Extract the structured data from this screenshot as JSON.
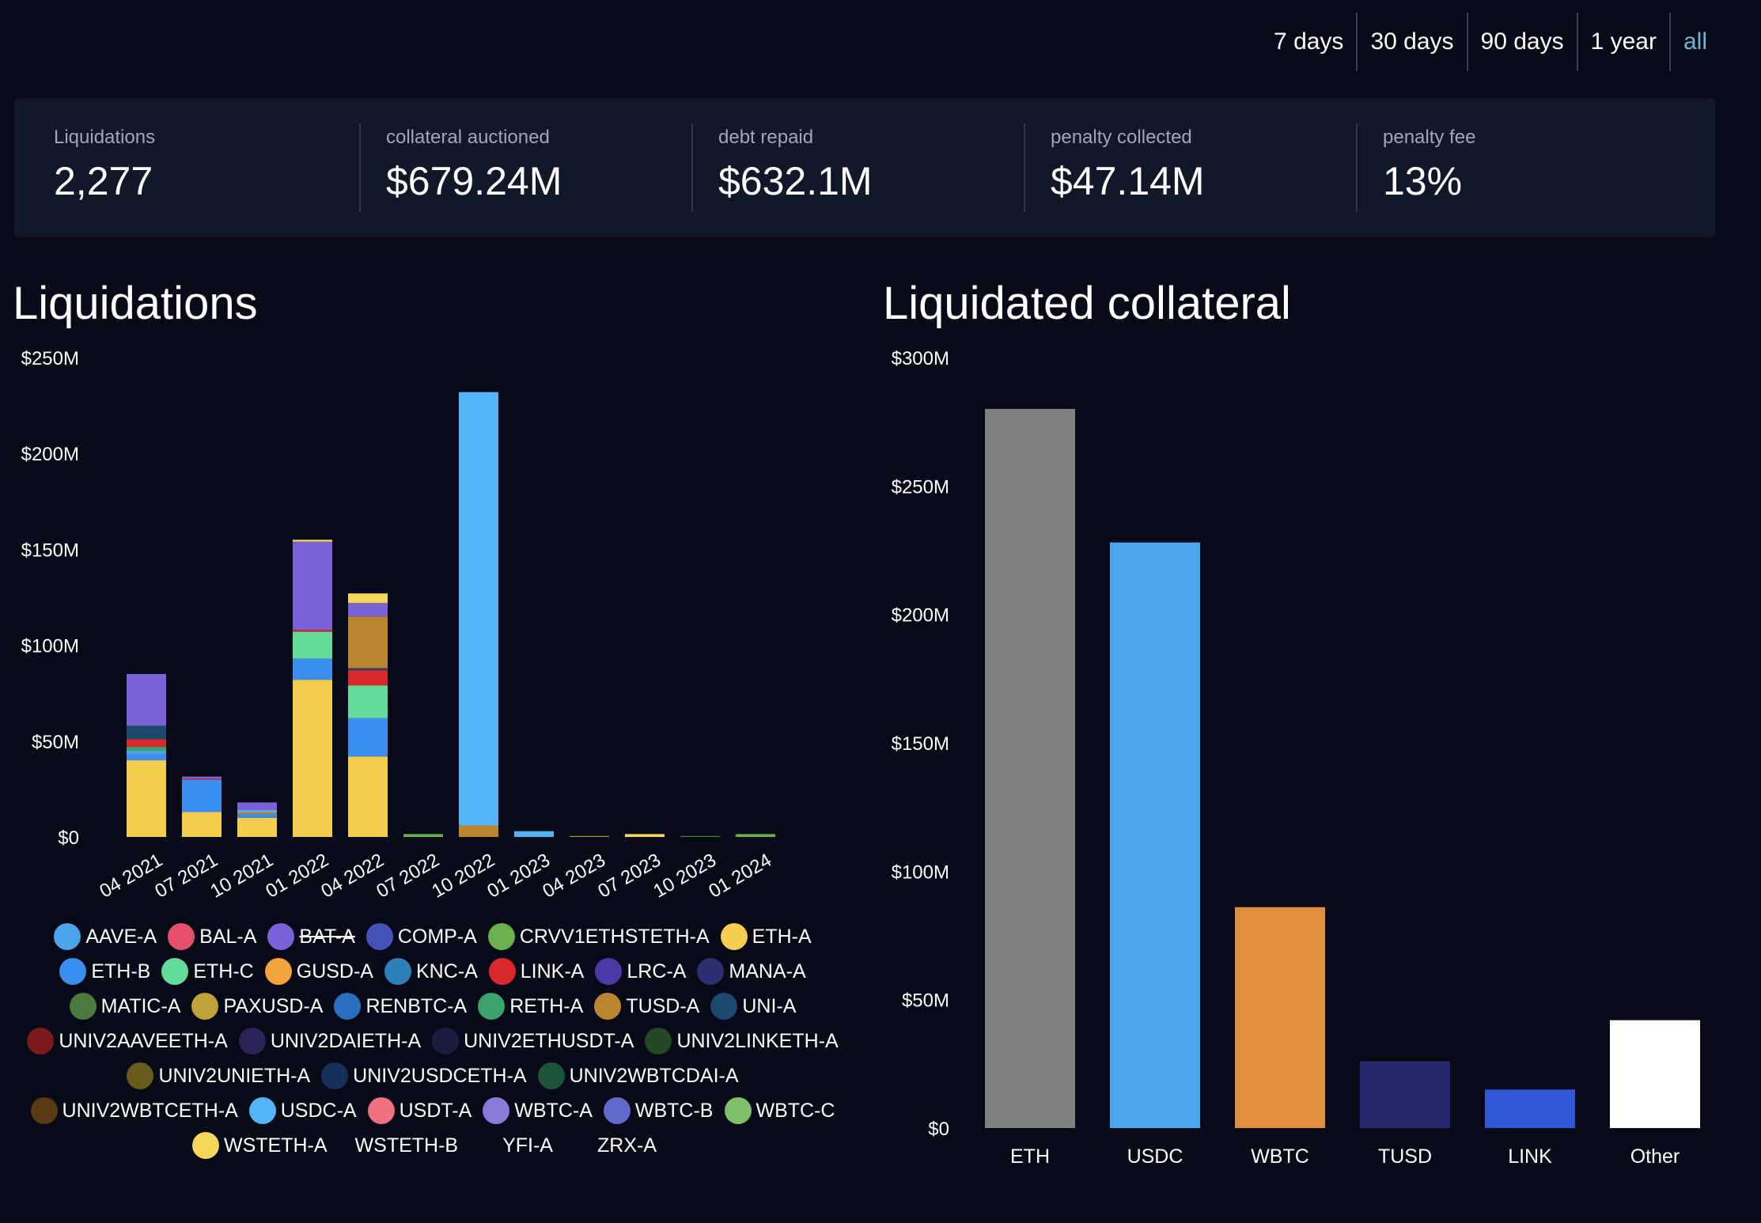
{
  "range_tabs": [
    {
      "label": "7 days",
      "active": false
    },
    {
      "label": "30 days",
      "active": false
    },
    {
      "label": "90 days",
      "active": false
    },
    {
      "label": "1 year",
      "active": false
    },
    {
      "label": "all",
      "active": true
    }
  ],
  "stats": [
    {
      "label": "Liquidations",
      "value": "2,277"
    },
    {
      "label": "collateral auctioned",
      "value": "$679.24M"
    },
    {
      "label": "debt repaid",
      "value": "$632.1M"
    },
    {
      "label": "penalty collected",
      "value": "$47.14M"
    },
    {
      "label": "penalty fee",
      "value": "13%"
    }
  ],
  "colors": {
    "AAVE-A": "#4ba3e8",
    "BAL-A": "#e8506a",
    "BAT-A": "#7b62d6",
    "COMP-A": "#4452b8",
    "CRVV1ETHSTETH-A": "#6ab04c",
    "ETH-A": "#f2cd4e",
    "ETH-B": "#3b8ef0",
    "ETH-C": "#63dc9a",
    "GUSD-A": "#f1a43c",
    "KNC-A": "#2f7fb8",
    "LINK-A": "#d8292f",
    "LRC-A": "#4a3aa8",
    "MANA-A": "#2a2f6e",
    "MATIC-A": "#4a7a3c",
    "PAXUSD-A": "#c0a23a",
    "RENBTC-A": "#2a6ec0",
    "RETH-A": "#3aa26a",
    "TUSD-A": "#b8862e",
    "UNI-A": "#1c4a6e",
    "UNIV2AAVEETH-A": "#7a1a1a",
    "UNIV2DAIETH-A": "#2a2458",
    "UNIV2ETHUSDT-A": "#1a1e3e",
    "UNIV2LINKETH-A": "#244a24",
    "UNIV2UNIETH-A": "#6a5a1a",
    "UNIV2USDCETH-A": "#16325a",
    "UNIV2WBTCDAI-A": "#1e5436",
    "UNIV2WBTCETH-A": "#5a3a14",
    "USDC-A": "#52b4f5",
    "USDT-A": "#f07080",
    "WBTC-A": "#8b7ad8",
    "WBTC-B": "#6068c8",
    "WBTC-C": "#7ec06a",
    "WSTETH-A": "#f5d658"
  },
  "chart_data": [
    {
      "type": "bar",
      "stacked": true,
      "title": "Liquidations",
      "categories": [
        "04 2021",
        "07 2021",
        "10 2021",
        "01 2022",
        "04 2022",
        "07 2022",
        "10 2022",
        "01 2023",
        "04 2023",
        "07 2023",
        "10 2023",
        "01 2024"
      ],
      "y_tick_labels": [
        "$0",
        "$50M",
        "$100M",
        "$150M",
        "$200M",
        "$250M"
      ],
      "ylim": [
        0,
        250
      ],
      "unit": "M USD",
      "series": [
        {
          "name": "ETH-A",
          "values": [
            40,
            13,
            10,
            82,
            42,
            0,
            0,
            0,
            0,
            0,
            0,
            0
          ]
        },
        {
          "name": "ETH-B",
          "values": [
            3,
            17,
            2,
            11,
            20,
            0,
            0,
            0,
            0,
            0,
            0,
            0
          ]
        },
        {
          "name": "ETH-C",
          "values": [
            0,
            0,
            0,
            14,
            17,
            0,
            0,
            0,
            0,
            0,
            0,
            0
          ]
        },
        {
          "name": "AAVE-A",
          "values": [
            2,
            0,
            0,
            0,
            0,
            0,
            0,
            0,
            0,
            0,
            0,
            0
          ]
        },
        {
          "name": "RETH-A",
          "values": [
            2,
            0,
            0,
            0,
            0,
            0,
            0,
            0,
            0,
            0,
            0,
            0
          ]
        },
        {
          "name": "LINK-A",
          "values": [
            4,
            0.5,
            0,
            1,
            8,
            0,
            0,
            0,
            0,
            0,
            0,
            0
          ]
        },
        {
          "name": "UNI-A",
          "values": [
            7,
            0,
            0,
            0,
            1,
            0,
            0,
            0,
            0,
            0,
            0,
            0
          ]
        },
        {
          "name": "TUSD-A",
          "values": [
            0,
            0,
            1,
            0,
            27,
            0,
            6,
            0,
            0.5,
            0,
            0,
            0
          ]
        },
        {
          "name": "USDC-A",
          "values": [
            0,
            0,
            1,
            0,
            0,
            0,
            226,
            3,
            0,
            0,
            0,
            0
          ]
        },
        {
          "name": "BAT-A",
          "values": [
            27,
            1,
            4,
            46,
            7,
            0,
            0,
            0,
            0,
            0,
            0,
            0
          ]
        },
        {
          "name": "WSTETH-A",
          "values": [
            0,
            0,
            0,
            1,
            5,
            0,
            0,
            0,
            0,
            1.5,
            0,
            0
          ]
        },
        {
          "name": "CRVV1ETHSTETH-A",
          "values": [
            0,
            0,
            0,
            0,
            0,
            1.5,
            0,
            0,
            0,
            0,
            0,
            1.5
          ]
        },
        {
          "name": "MATIC-A",
          "values": [
            0,
            0,
            0,
            0,
            0,
            0,
            0,
            0,
            0,
            0,
            0.5,
            0
          ]
        }
      ]
    },
    {
      "type": "bar",
      "title": "Liquidated collateral",
      "categories": [
        "ETH",
        "USDC",
        "WBTC",
        "TUSD",
        "LINK",
        "Other"
      ],
      "values": [
        280,
        228,
        86,
        26,
        15,
        42
      ],
      "colors": [
        "#808080",
        "#4aa6ec",
        "#e0903c",
        "#262a6c",
        "#3058d8",
        "#ffffff"
      ],
      "y_tick_labels": [
        "$0",
        "$50M",
        "$100M",
        "$150M",
        "$200M",
        "$250M",
        "$300M"
      ],
      "ylim": [
        0,
        300
      ],
      "unit": "M USD"
    }
  ],
  "legend": [
    {
      "label": "AAVE-A",
      "disabled": false,
      "swatch": true
    },
    {
      "label": "BAL-A",
      "disabled": false,
      "swatch": true
    },
    {
      "label": "BAT-A",
      "disabled": true,
      "swatch": true
    },
    {
      "label": "COMP-A",
      "disabled": false,
      "swatch": true
    },
    {
      "label": "CRVV1ETHSTETH-A",
      "disabled": false,
      "swatch": true
    },
    {
      "label": "ETH-A",
      "disabled": false,
      "swatch": true
    },
    {
      "label": "ETH-B",
      "disabled": false,
      "swatch": true
    },
    {
      "label": "ETH-C",
      "disabled": false,
      "swatch": true
    },
    {
      "label": "GUSD-A",
      "disabled": false,
      "swatch": true
    },
    {
      "label": "KNC-A",
      "disabled": false,
      "swatch": true
    },
    {
      "label": "LINK-A",
      "disabled": false,
      "swatch": true
    },
    {
      "label": "LRC-A",
      "disabled": false,
      "swatch": true
    },
    {
      "label": "MANA-A",
      "disabled": false,
      "swatch": true
    },
    {
      "label": "MATIC-A",
      "disabled": false,
      "swatch": true
    },
    {
      "label": "PAXUSD-A",
      "disabled": false,
      "swatch": true
    },
    {
      "label": "RENBTC-A",
      "disabled": false,
      "swatch": true
    },
    {
      "label": "RETH-A",
      "disabled": false,
      "swatch": true
    },
    {
      "label": "TUSD-A",
      "disabled": false,
      "swatch": true
    },
    {
      "label": "UNI-A",
      "disabled": false,
      "swatch": true
    },
    {
      "label": "UNIV2AAVEETH-A",
      "disabled": false,
      "swatch": true
    },
    {
      "label": "UNIV2DAIETH-A",
      "disabled": false,
      "swatch": true
    },
    {
      "label": "UNIV2ETHUSDT-A",
      "disabled": false,
      "swatch": true
    },
    {
      "label": "UNIV2LINKETH-A",
      "disabled": false,
      "swatch": true
    },
    {
      "label": "UNIV2UNIETH-A",
      "disabled": false,
      "swatch": true
    },
    {
      "label": "UNIV2USDCETH-A",
      "disabled": false,
      "swatch": true
    },
    {
      "label": "UNIV2WBTCDAI-A",
      "disabled": false,
      "swatch": true
    },
    {
      "label": "UNIV2WBTCETH-A",
      "disabled": false,
      "swatch": true
    },
    {
      "label": "USDC-A",
      "disabled": false,
      "swatch": true
    },
    {
      "label": "USDT-A",
      "disabled": false,
      "swatch": true
    },
    {
      "label": "WBTC-A",
      "disabled": false,
      "swatch": true
    },
    {
      "label": "WBTC-B",
      "disabled": false,
      "swatch": true
    },
    {
      "label": "WBTC-C",
      "disabled": false,
      "swatch": true
    },
    {
      "label": "WSTETH-A",
      "disabled": false,
      "swatch": true
    },
    {
      "label": "WSTETH-B",
      "disabled": false,
      "swatch": false
    },
    {
      "label": "YFI-A",
      "disabled": false,
      "swatch": false
    },
    {
      "label": "ZRX-A",
      "disabled": false,
      "swatch": false
    }
  ]
}
